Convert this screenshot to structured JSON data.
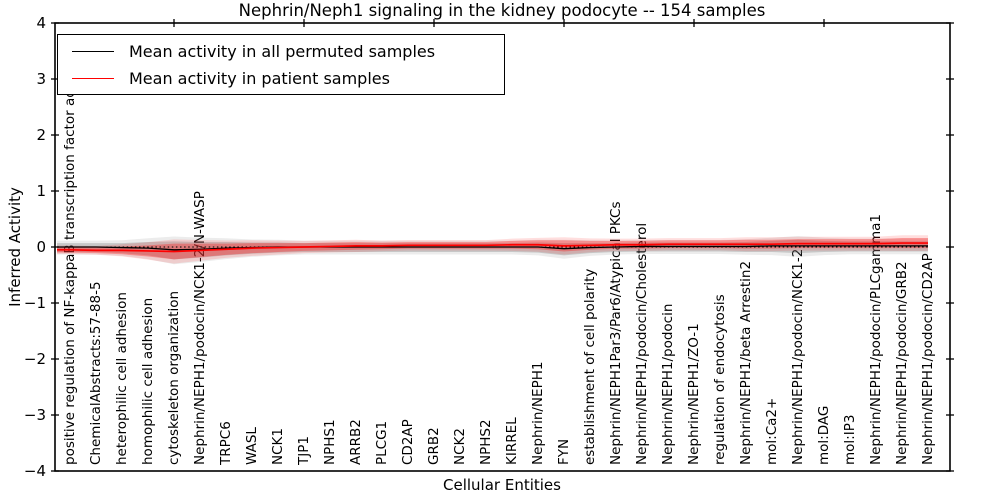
{
  "figure": {
    "title": "Nephrin/Neph1 signaling in the kidney podocyte -- 154 samples",
    "xlabel": "Cellular Entities",
    "ylabel": "Inferred Activity"
  },
  "chart_data": {
    "type": "line",
    "title": "Nephrin/Neph1 signaling in the kidney podocyte -- 154 samples",
    "xlabel": "Cellular Entities",
    "ylabel": "Inferred Activity",
    "ylim": [
      -4,
      4
    ],
    "yticks": [
      4,
      3,
      2,
      1,
      0,
      -1,
      -2,
      -3,
      -4
    ],
    "grid": false,
    "zero_line": true,
    "legend_position": "upper left",
    "categories": [
      "positive regulation of NF-kappaB transcription factor activity",
      "ChemicalAbstracts:57-88-5",
      "heterophilic cell adhesion",
      "homophilic cell adhesion",
      "cytoskeleton organization",
      "Nephrin/NEPH1/podocin/NCK1-2/N-WASP",
      "TRPC6",
      "WASL",
      "NCK1",
      "TJP1",
      "NPHS1",
      "ARRB2",
      "PLCG1",
      "CD2AP",
      "GRB2",
      "NCK2",
      "NPHS2",
      "KIRREL",
      "Nephrin/NEPH1",
      "FYN",
      "establishment of cell polarity",
      "Nephrin/NEPH1Par3/Par6/Atypical PKCs",
      "Nephrin/NEPH1/podocin/Cholesterol",
      "Nephrin/NEPH1/podocin",
      "Nephrin/NEPH1/ZO-1",
      "regulation of endocytosis",
      "Nephrin/NEPH1/beta Arrestin2",
      "mol:Ca2+",
      "Nephrin/NEPH1/podocin/NCK1-2",
      "mol:DAG",
      "mol:IP3",
      "Nephrin/NEPH1/podocin/PLCgamma1",
      "Nephrin/NEPH1/podocin/GRB2",
      "Nephrin/NEPH1/podocin/CD2AP"
    ],
    "series": [
      {
        "name": "Mean activity in all permuted samples",
        "color": "#000000",
        "values": [
          0,
          0,
          -0.01,
          -0.02,
          -0.05,
          -0.04,
          -0.02,
          -0.01,
          0,
          0,
          0,
          0,
          0,
          0,
          0,
          0,
          0,
          0,
          0,
          -0.03,
          -0.01,
          0,
          0.01,
          0.01,
          0.01,
          0.01,
          0.01,
          0.02,
          0.02,
          0.02,
          0.02,
          0.02,
          0.02,
          0.02
        ]
      },
      {
        "name": "Mean activity in patient samples",
        "color": "#ff0000",
        "values": [
          -0.05,
          -0.06,
          -0.06,
          -0.07,
          -0.08,
          -0.06,
          -0.04,
          -0.02,
          -0.01,
          0,
          0.01,
          0.02,
          0.02,
          0.03,
          0.03,
          0.03,
          0.03,
          0.04,
          0.04,
          0.02,
          0.03,
          0.04,
          0.04,
          0.05,
          0.05,
          0.05,
          0.05,
          0.05,
          0.06,
          0.06,
          0.06,
          0.06,
          0.07,
          0.07
        ]
      }
    ],
    "bands": [
      {
        "name": "permuted samples range",
        "color": "#707070",
        "upper": [
          0.07,
          0.07,
          0.07,
          0.09,
          0.1,
          0.09,
          0.09,
          0.08,
          0.08,
          0.07,
          0.07,
          0.07,
          0.07,
          0.07,
          0.07,
          0.07,
          0.07,
          0.07,
          0.08,
          0.07,
          0.07,
          0.07,
          0.08,
          0.08,
          0.08,
          0.08,
          0.09,
          0.11,
          0.13,
          0.11,
          0.1,
          0.1,
          0.1,
          0.1
        ],
        "lower": [
          -0.09,
          -0.09,
          -0.11,
          -0.15,
          -0.22,
          -0.19,
          -0.15,
          -0.12,
          -0.1,
          -0.09,
          -0.09,
          -0.09,
          -0.09,
          -0.09,
          -0.09,
          -0.09,
          -0.09,
          -0.09,
          -0.1,
          -0.15,
          -0.11,
          -0.09,
          -0.08,
          -0.08,
          -0.08,
          -0.08,
          -0.09,
          -0.09,
          -0.11,
          -0.09,
          -0.08,
          -0.08,
          -0.08,
          -0.08
        ]
      },
      {
        "name": "patient samples range",
        "color": "#ff0000",
        "upper": [
          0,
          -0.01,
          0.01,
          0.03,
          0.06,
          0.06,
          0.06,
          0.07,
          0.07,
          0.07,
          0.08,
          0.09,
          0.08,
          0.09,
          0.09,
          0.09,
          0.09,
          0.11,
          0.12,
          0.12,
          0.11,
          0.11,
          0.11,
          0.12,
          0.12,
          0.12,
          0.13,
          0.13,
          0.14,
          0.14,
          0.14,
          0.14,
          0.16,
          0.16
        ],
        "lower": [
          -0.1,
          -0.11,
          -0.13,
          -0.17,
          -0.22,
          -0.18,
          -0.14,
          -0.11,
          -0.09,
          -0.07,
          -0.06,
          -0.05,
          -0.04,
          -0.03,
          -0.03,
          -0.03,
          -0.03,
          -0.03,
          -0.04,
          -0.08,
          -0.05,
          -0.03,
          -0.03,
          -0.02,
          -0.02,
          -0.02,
          -0.03,
          -0.03,
          -0.02,
          -0.02,
          -0.02,
          -0.02,
          -0.02,
          -0.02
        ]
      }
    ]
  },
  "legend": {
    "entries": [
      {
        "label": "Mean activity in all permuted samples",
        "color": "#000000"
      },
      {
        "label": "Mean activity in patient samples",
        "color": "#ff0000"
      }
    ]
  }
}
